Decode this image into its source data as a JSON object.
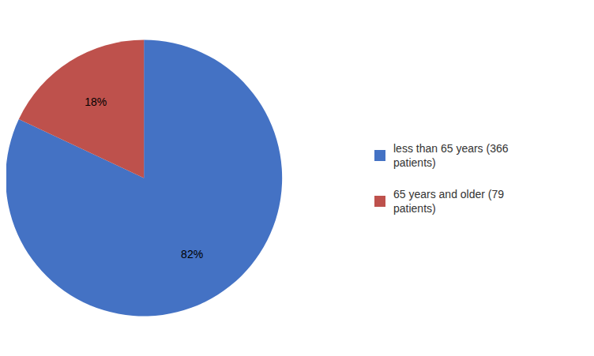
{
  "chart_data": {
    "type": "pie",
    "categories": [
      "less than 65 years (366\npatients)",
      "65 years and older (79\npatients)"
    ],
    "values": [
      82,
      18
    ],
    "value_labels": [
      "82%",
      "18%"
    ],
    "colors": [
      "#4472C4",
      "#BE514C"
    ],
    "data_labels": true,
    "legend": "right"
  }
}
